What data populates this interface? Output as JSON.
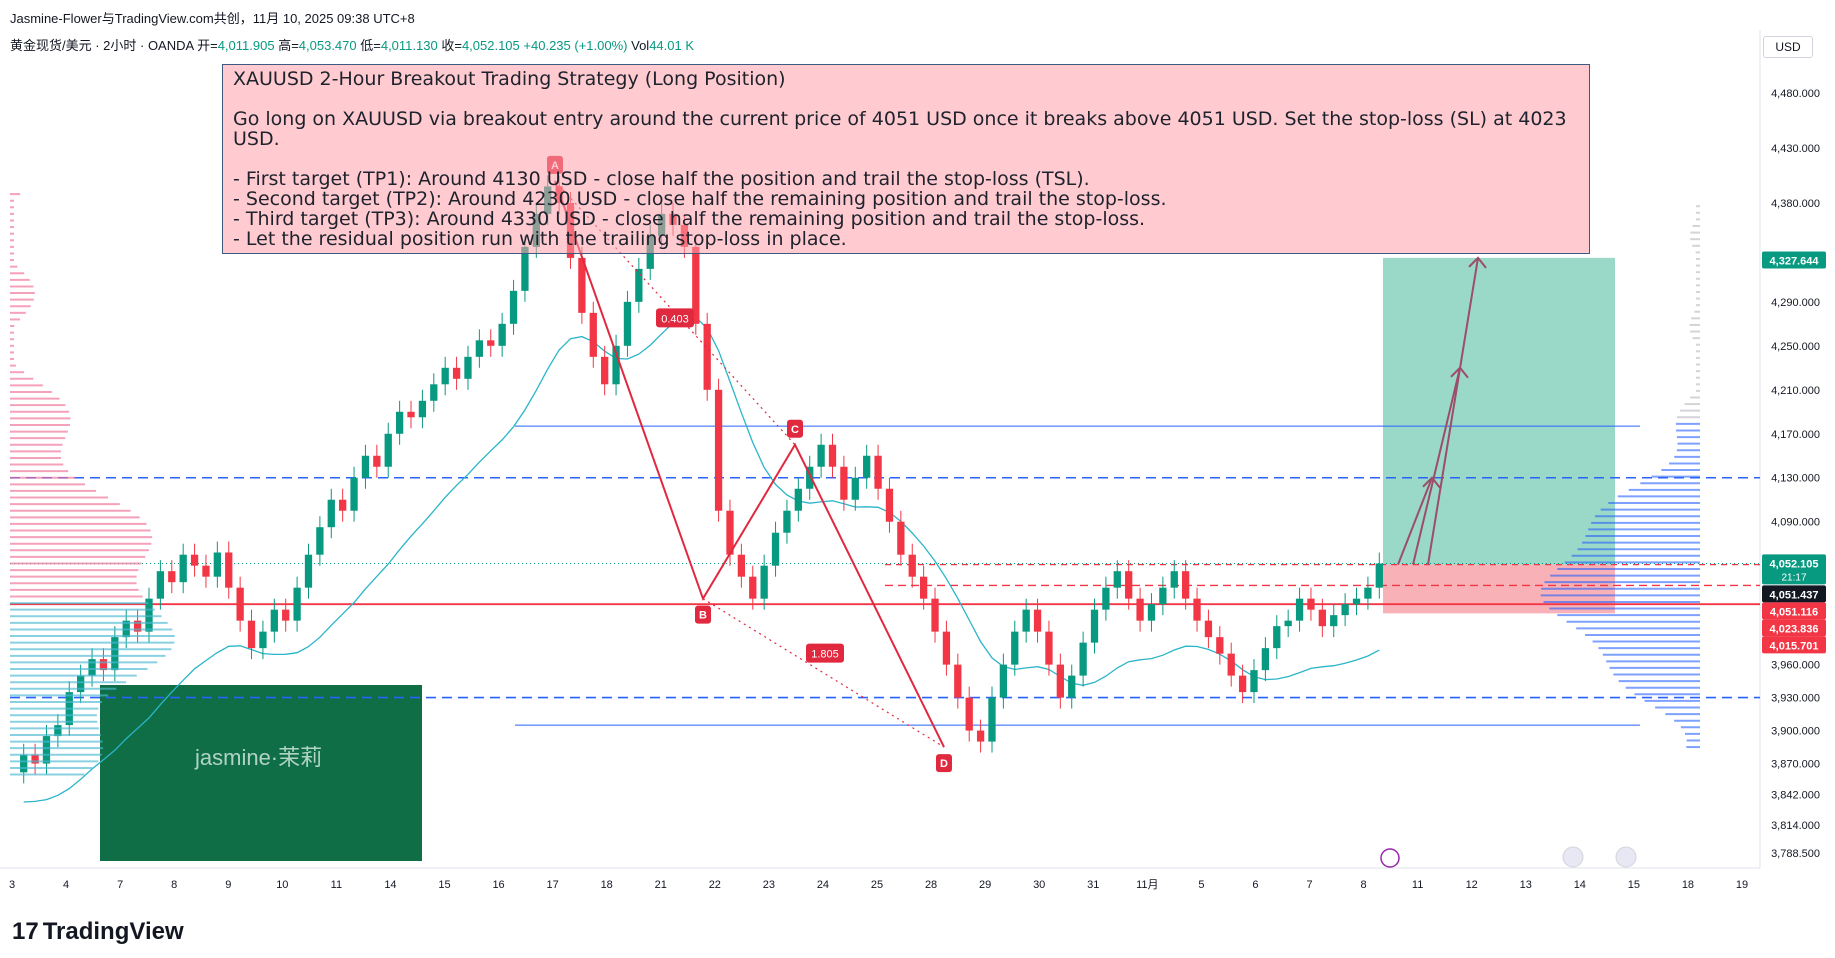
{
  "header": {
    "line1": "Jasmine-Flower与TradingView.com共创，11月 10, 2025 09:38 UTC+8",
    "symbol": "黄金现货/美元 · 2小时 · OANDA",
    "open_label": "开=",
    "open": "4,011.905",
    "high_label": "高=",
    "high": "4,053.470",
    "low_label": "低=",
    "low": "4,011.130",
    "close_label": "收=",
    "close": "4,052.105",
    "change": "+40.235 (+1.00%)",
    "vol_label": "Vol",
    "vol": "44.01 K"
  },
  "currency": "USD",
  "note": {
    "title": "XAUUSD 2-Hour Breakout Trading Strategy (Long Position)",
    "summary": "Go long on XAUUSD via breakout entry around the current price of 4051 USD once it breaks above 4051 USD. Set the stop-loss (SL) at 4023 USD.",
    "items": [
      "- First target (TP1): Around 4130 USD - close half the position and trail the stop-loss (TSL).",
      "- Second target (TP2): Around 4230 USD - close half the remaining position and trail the stop-loss.",
      "- Third target (TP3): Around 4330 USD - close half the remaining position and trail the stop-loss.",
      "- Let the residual position run with the trailing stop-loss in place."
    ]
  },
  "watermark": "jasmine·茉莉",
  "logo_text": "TradingView",
  "colors": {
    "up": "#089981",
    "down": "#f23645",
    "pattern": "#e0293f",
    "blue_line": "#2962ff",
    "ma_line": "#2bb5c9",
    "tp_zone": "#8fd4c1",
    "sl_zone": "#f7a8ae"
  },
  "chart_data": {
    "type": "candlestick",
    "symbol": "XAUUSD",
    "interval": "2h",
    "ylim": [
      3775,
      4510
    ],
    "y_ticks": [
      4480,
      4430,
      4380,
      4290,
      4250,
      4210,
      4170,
      4130,
      4090,
      3960,
      3930,
      3900,
      3870,
      3842,
      3814,
      3788.5
    ],
    "y_tick_labels": [
      "4,480.000",
      "4,430.000",
      "4,380.000",
      "4,290.000",
      "4,250.000",
      "4,210.000",
      "4,170.000",
      "4,130.000",
      "4,090.000",
      "3,960.000",
      "3,930.000",
      "3,900.000",
      "3,870.000",
      "3,842.000",
      "3,814.000",
      "3,788.500"
    ],
    "x_labels": [
      "3",
      "4",
      "7",
      "8",
      "9",
      "10",
      "11",
      "14",
      "15",
      "16",
      "17",
      "18",
      "21",
      "22",
      "23",
      "24",
      "25",
      "28",
      "29",
      "30",
      "31",
      "11月",
      "5",
      "6",
      "7",
      "8",
      "11",
      "12",
      "13",
      "14",
      "15",
      "18",
      "19"
    ],
    "price_badges": [
      {
        "value": 4327.644,
        "label": "4,327.644",
        "color": "#089981"
      },
      {
        "value": 4052.105,
        "label": "4,052.105",
        "sub": "21:17",
        "color": "#089981"
      },
      {
        "value": 4051.437,
        "label": "4,051.437",
        "color": "#131722"
      },
      {
        "value": 4051.116,
        "label": "4,051.116",
        "color": "#f23645"
      },
      {
        "value": 4023.836,
        "label": "4,023.836",
        "color": "#f23645"
      },
      {
        "value": 4015.701,
        "label": "4,015.701",
        "color": "#f23645"
      }
    ],
    "levels": {
      "entry": 4051,
      "stop_loss": 4023,
      "tp1": 4130,
      "tp2": 4230,
      "tp3": 4330,
      "dashed_blue": [
        4130,
        3930
      ],
      "solid_blue": [
        4177,
        3905
      ],
      "red_support": 4015
    },
    "harmonic_points": [
      {
        "label": "A",
        "value": 4400
      },
      {
        "label": "B",
        "value": 4020
      },
      {
        "label": "C",
        "value": 4160
      },
      {
        "label": "D",
        "value": 3885
      }
    ],
    "fib_labels": [
      "0.403",
      "1.805"
    ],
    "bars": [
      [
        3862,
        3878
      ],
      [
        3878,
        3870
      ],
      [
        3870,
        3895
      ],
      [
        3895,
        3905
      ],
      [
        3905,
        3935
      ],
      [
        3935,
        3950
      ],
      [
        3950,
        3965
      ],
      [
        3965,
        3955
      ],
      [
        3955,
        3985
      ],
      [
        3985,
        4000
      ],
      [
        4000,
        3990
      ],
      [
        3990,
        4020
      ],
      [
        4020,
        4045
      ],
      [
        4045,
        4035
      ],
      [
        4035,
        4060
      ],
      [
        4060,
        4050
      ],
      [
        4050,
        4040
      ],
      [
        4040,
        4062
      ],
      [
        4062,
        4030
      ],
      [
        4030,
        4000
      ],
      [
        4000,
        3975
      ],
      [
        3975,
        3990
      ],
      [
        3990,
        4010
      ],
      [
        4010,
        4000
      ],
      [
        4000,
        4030
      ],
      [
        4030,
        4060
      ],
      [
        4060,
        4085
      ],
      [
        4085,
        4110
      ],
      [
        4110,
        4100
      ],
      [
        4100,
        4130
      ],
      [
        4130,
        4150
      ],
      [
        4150,
        4140
      ],
      [
        4140,
        4170
      ],
      [
        4170,
        4190
      ],
      [
        4190,
        4185
      ],
      [
        4185,
        4200
      ],
      [
        4200,
        4215
      ],
      [
        4215,
        4230
      ],
      [
        4230,
        4220
      ],
      [
        4220,
        4240
      ],
      [
        4240,
        4255
      ],
      [
        4255,
        4250
      ],
      [
        4250,
        4270
      ],
      [
        4270,
        4300
      ],
      [
        4300,
        4340
      ],
      [
        4340,
        4370
      ],
      [
        4370,
        4395
      ],
      [
        4395,
        4380
      ],
      [
        4380,
        4330
      ],
      [
        4330,
        4280
      ],
      [
        4280,
        4240
      ],
      [
        4240,
        4215
      ],
      [
        4215,
        4250
      ],
      [
        4250,
        4290
      ],
      [
        4290,
        4320
      ],
      [
        4320,
        4350
      ],
      [
        4350,
        4370
      ],
      [
        4370,
        4360
      ],
      [
        4360,
        4340
      ],
      [
        4340,
        4270
      ],
      [
        4270,
        4210
      ],
      [
        4210,
        4100
      ],
      [
        4100,
        4060
      ],
      [
        4060,
        4040
      ],
      [
        4040,
        4020
      ],
      [
        4020,
        4050
      ],
      [
        4050,
        4080
      ],
      [
        4080,
        4100
      ],
      [
        4100,
        4120
      ],
      [
        4120,
        4140
      ],
      [
        4140,
        4160
      ],
      [
        4160,
        4140
      ],
      [
        4140,
        4110
      ],
      [
        4110,
        4130
      ],
      [
        4130,
        4150
      ],
      [
        4150,
        4120
      ],
      [
        4120,
        4090
      ],
      [
        4090,
        4060
      ],
      [
        4060,
        4040
      ],
      [
        4040,
        4020
      ],
      [
        4020,
        3990
      ],
      [
        3990,
        3960
      ],
      [
        3960,
        3930
      ],
      [
        3930,
        3900
      ],
      [
        3900,
        3890
      ],
      [
        3890,
        3930
      ],
      [
        3930,
        3960
      ],
      [
        3960,
        3990
      ],
      [
        3990,
        4010
      ],
      [
        4010,
        3990
      ],
      [
        3990,
        3960
      ],
      [
        3960,
        3930
      ],
      [
        3930,
        3950
      ],
      [
        3950,
        3980
      ],
      [
        3980,
        4010
      ],
      [
        4010,
        4030
      ],
      [
        4030,
        4045
      ],
      [
        4045,
        4020
      ],
      [
        4020,
        4000
      ],
      [
        4000,
        4015
      ],
      [
        4015,
        4030
      ],
      [
        4030,
        4045
      ],
      [
        4045,
        4020
      ],
      [
        4020,
        4000
      ],
      [
        4000,
        3985
      ],
      [
        3985,
        3970
      ],
      [
        3970,
        3950
      ],
      [
        3950,
        3935
      ],
      [
        3935,
        3955
      ],
      [
        3955,
        3975
      ],
      [
        3975,
        3995
      ],
      [
        3995,
        4000
      ],
      [
        4000,
        4020
      ],
      [
        4020,
        4010
      ],
      [
        4010,
        3995
      ],
      [
        3995,
        4005
      ],
      [
        4005,
        4015
      ],
      [
        4015,
        4020
      ],
      [
        4020,
        4030
      ],
      [
        4030,
        4052
      ]
    ]
  }
}
